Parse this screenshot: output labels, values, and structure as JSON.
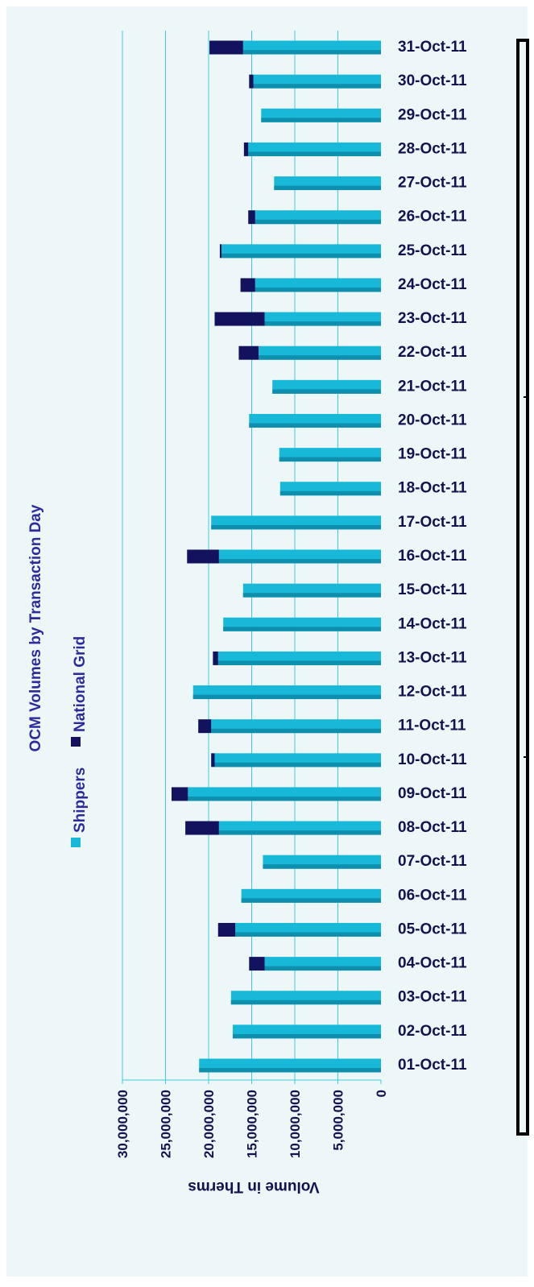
{
  "chart_data": {
    "type": "bar",
    "orientation": "horizontal-stacked-rotated",
    "title": "OCM Volumes by Transaction Day",
    "xlabel": "",
    "ylabel": "Volume in Therms",
    "ylim": [
      0,
      30000000
    ],
    "yticks": [
      0,
      5000000,
      10000000,
      15000000,
      20000000,
      25000000,
      30000000
    ],
    "ytick_labels": [
      "0",
      "5,000,000",
      "10,000,000",
      "15,000,000",
      "20,000,000",
      "25,000,000",
      "30,000,000"
    ],
    "grid": true,
    "legend_position": "top",
    "categories": [
      "01-Oct-11",
      "02-Oct-11",
      "03-Oct-11",
      "04-Oct-11",
      "05-Oct-11",
      "06-Oct-11",
      "07-Oct-11",
      "08-Oct-11",
      "09-Oct-11",
      "10-Oct-11",
      "11-Oct-11",
      "12-Oct-11",
      "13-Oct-11",
      "14-Oct-11",
      "15-Oct-11",
      "16-Oct-11",
      "17-Oct-11",
      "18-Oct-11",
      "19-Oct-11",
      "20-Oct-11",
      "21-Oct-11",
      "22-Oct-11",
      "23-Oct-11",
      "24-Oct-11",
      "25-Oct-11",
      "26-Oct-11",
      "27-Oct-11",
      "28-Oct-11",
      "29-Oct-11",
      "30-Oct-11",
      "31-Oct-11"
    ],
    "series": [
      {
        "name": "Shippers",
        "color": "#18b9d8",
        "values": [
          21100000,
          17200000,
          17400000,
          13500000,
          16900000,
          16200000,
          13700000,
          18800000,
          22400000,
          19300000,
          19700000,
          21800000,
          18900000,
          18300000,
          16000000,
          18800000,
          19700000,
          11700000,
          11800000,
          15300000,
          12600000,
          14200000,
          13500000,
          14600000,
          18500000,
          14600000,
          12400000,
          15400000,
          13900000,
          14800000,
          16000000
        ]
      },
      {
        "name": "National Grid",
        "color": "#12125e",
        "values": [
          0,
          0,
          0,
          1800000,
          2000000,
          0,
          0,
          3900000,
          1900000,
          400000,
          1500000,
          0,
          600000,
          0,
          0,
          3700000,
          0,
          0,
          0,
          0,
          0,
          2300000,
          5800000,
          1700000,
          200000,
          800000,
          0,
          500000,
          0,
          500000,
          3900000
        ]
      }
    ]
  }
}
